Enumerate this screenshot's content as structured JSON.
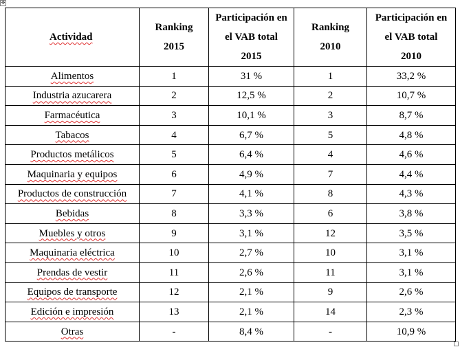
{
  "table": {
    "headers": {
      "actividad": "Actividad",
      "ranking_2015": [
        "Ranking",
        "2015"
      ],
      "part_2015": [
        "Participación en",
        "el VAB total",
        "2015"
      ],
      "ranking_2010": [
        "Ranking",
        "2010"
      ],
      "part_2010": [
        "Participación en",
        "el VAB total",
        "2010"
      ]
    },
    "rows": [
      {
        "actividad": "Alimentos",
        "ranking_2015": "1",
        "part_2015": "31 %",
        "ranking_2010": "1",
        "part_2010": "33,2 %"
      },
      {
        "actividad": "Industria azucarera",
        "ranking_2015": "2",
        "part_2015": "12,5 %",
        "ranking_2010": "2",
        "part_2010": "10,7 %"
      },
      {
        "actividad": "Farmacéutica",
        "ranking_2015": "3",
        "part_2015": "10,1 %",
        "ranking_2010": "3",
        "part_2010": "8,7 %"
      },
      {
        "actividad": "Tabacos",
        "ranking_2015": "4",
        "part_2015": "6,7 %",
        "ranking_2010": "5",
        "part_2010": "4,8 %"
      },
      {
        "actividad": "Productos metálicos",
        "ranking_2015": "5",
        "part_2015": "6,4 %",
        "ranking_2010": "4",
        "part_2010": "4,6 %"
      },
      {
        "actividad": "Maquinaria y equipos",
        "ranking_2015": "6",
        "part_2015": "4,9 %",
        "ranking_2010": "7",
        "part_2010": "4,4 %"
      },
      {
        "actividad": "Productos de construcción",
        "ranking_2015": "7",
        "part_2015": "4,1 %",
        "ranking_2010": "8",
        "part_2010": "4,3 %"
      },
      {
        "actividad": "Bebidas",
        "ranking_2015": "8",
        "part_2015": "3,3 %",
        "ranking_2010": "6",
        "part_2010": "3,8 %"
      },
      {
        "actividad": "Muebles y otros",
        "ranking_2015": "9",
        "part_2015": "3,1 %",
        "ranking_2010": "12",
        "part_2010": "3,5 %"
      },
      {
        "actividad": "Maquinaria eléctrica",
        "ranking_2015": "10",
        "part_2015": "2,7 %",
        "ranking_2010": "10",
        "part_2010": "3,1 %"
      },
      {
        "actividad": "Prendas de vestir",
        "ranking_2015": "11",
        "part_2015": "2,6 %",
        "ranking_2010": "11",
        "part_2010": "3,1 %"
      },
      {
        "actividad": "Equipos de transporte",
        "ranking_2015": "12",
        "part_2015": "2,1 %",
        "ranking_2010": "9",
        "part_2010": "2,6 %"
      },
      {
        "actividad": "Edición e impresión",
        "ranking_2015": "13",
        "part_2015": "2,1 %",
        "ranking_2010": "14",
        "part_2010": "2,3 %"
      },
      {
        "actividad": "Otras",
        "ranking_2015": "-",
        "part_2015": "8,4 %",
        "ranking_2010": "-",
        "part_2010": "10,9 %"
      }
    ]
  },
  "handles": {
    "move_icon": "move-cross-icon",
    "move_glyph": "✥",
    "resize_icon": "resize-square-icon"
  }
}
